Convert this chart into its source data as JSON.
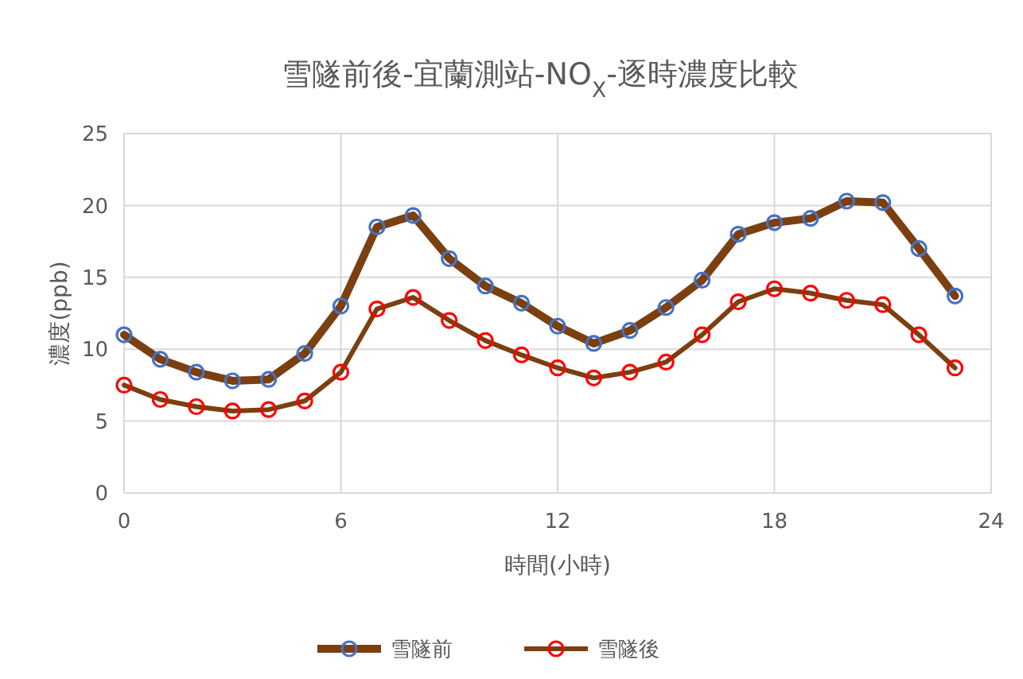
{
  "chart_data": {
    "type": "line",
    "title": "雪隧前後-宜蘭測站-NO$_{X}$-逐時濃度比較",
    "xlabel": "時間(小時)",
    "ylabel": "濃度(ppb)",
    "x": [
      0,
      1,
      2,
      3,
      4,
      5,
      6,
      7,
      8,
      9,
      10,
      11,
      12,
      13,
      14,
      15,
      16,
      17,
      18,
      19,
      20,
      21,
      22,
      23
    ],
    "xlim": [
      0,
      24
    ],
    "xticks": [
      0,
      6,
      12,
      18,
      24
    ],
    "ylim": [
      0,
      25
    ],
    "yticks": [
      0,
      5,
      10,
      15,
      20,
      25
    ],
    "grid": true,
    "legend": "bottom",
    "marker": "circle",
    "line_style": "solid",
    "series": [
      {
        "name": "雪隧前",
        "color": "#7b3f10",
        "values": [
          11,
          9.3,
          8.4,
          7.8,
          7.9,
          9.7,
          13,
          18.5,
          19.3,
          16.3,
          14.4,
          13.2,
          11.6,
          10.4,
          11.3,
          12.9,
          14.8,
          18,
          18.8,
          19.1,
          20.3,
          20.2,
          17,
          13.7
        ]
      },
      {
        "name": "雪隧後",
        "color": "#7b3f10",
        "values": [
          7.5,
          6.5,
          6,
          5.7,
          5.8,
          6.4,
          8.4,
          12.8,
          13.6,
          12,
          10.6,
          9.6,
          8.7,
          8,
          8.4,
          9.1,
          11,
          13.3,
          14.2,
          13.9,
          13.4,
          13.1,
          11,
          8.7
        ]
      }
    ]
  }
}
